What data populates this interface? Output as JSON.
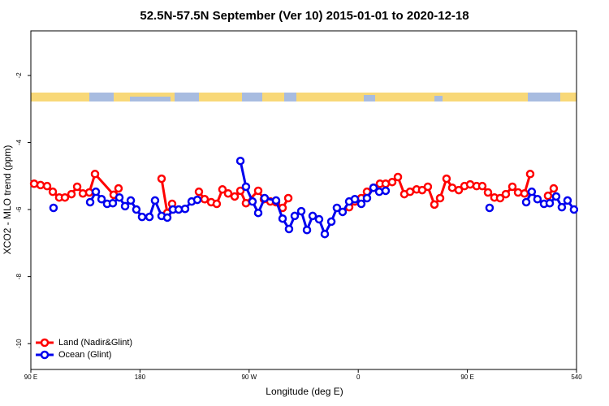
{
  "chart_data": {
    "type": "line",
    "title": "52.5N-57.5N September (Ver 10)   2015-01-01 to 2020-12-18",
    "x_label": "Longitude (deg E)",
    "y_label": "XCO2 - MLO trend (ppm)",
    "xlim": [
      90,
      540
    ],
    "xticks": [
      {
        "value": 90,
        "label": "90 E"
      },
      180,
      {
        "value": 270,
        "label": "90 W"
      },
      {
        "value": 360,
        "label": "0"
      },
      {
        "value": 450,
        "label": "90 E"
      },
      540
    ],
    "ylim": [
      -10.77,
      -0.67
    ],
    "yticks": [
      -10,
      -8,
      -6,
      -4,
      -2
    ],
    "legend": "bottomleft",
    "series": [
      {
        "name": "Land (Nadir&Glint)",
        "color": "#ff0000",
        "x": [
          92.7,
          98.0,
          103.4,
          108.1,
          113.4,
          118.1,
          123.5,
          128.2,
          132.9,
          138.2,
          142.9,
          158.3,
          162.3,
          180,
          197.8,
          202.5,
          206.5,
          218,
          228.6,
          233.3,
          238.7,
          243.3,
          248.0,
          252.7,
          258.1,
          262.8,
          267.4,
          277.5,
          282.2,
          287.5,
          292.2,
          297.6,
          302.3,
          330,
          352.5,
          357.2,
          362.5,
          367.2,
          372.6,
          377.9,
          382.6,
          388.0,
          392.7,
          398.0,
          402.7,
          408.1,
          412.7,
          417.4,
          422.8,
          427.5,
          432.8,
          437.5,
          442.9,
          447.6,
          452.3,
          457.6,
          462.3,
          467.0,
          472.3,
          477.0,
          481.7,
          487.1,
          491.8,
          497.1,
          501.8,
          510,
          516.5,
          521.2
        ],
        "values": [
          -5.23,
          -5.27,
          -5.3,
          -5.47,
          -5.64,
          -5.64,
          -5.54,
          -5.32,
          -5.52,
          -5.49,
          -4.94,
          -5.56,
          -5.37,
          null,
          -5.08,
          -6.1,
          -5.83,
          null,
          -5.47,
          -5.69,
          -5.78,
          -5.83,
          -5.4,
          -5.52,
          -5.61,
          -5.44,
          -5.81,
          -5.44,
          -5.69,
          -5.76,
          -5.78,
          -5.95,
          -5.66,
          null,
          -5.93,
          -5.76,
          -5.66,
          -5.47,
          -5.35,
          -5.23,
          -5.23,
          -5.18,
          -5.03,
          -5.54,
          -5.47,
          -5.4,
          -5.42,
          -5.32,
          -5.85,
          -5.66,
          -5.08,
          -5.35,
          -5.42,
          -5.3,
          -5.25,
          -5.3,
          -5.3,
          -5.49,
          -5.64,
          -5.66,
          -5.54,
          -5.32,
          -5.49,
          -5.52,
          -4.94,
          null,
          -5.59,
          -5.37
        ]
      },
      {
        "name": "Ocean (Glint)",
        "color": "#0000ee",
        "x": [
          108.7,
          130,
          138.9,
          143.6,
          148.3,
          152.9,
          157.6,
          163.0,
          167.7,
          172.4,
          177.0,
          181.7,
          187.8,
          192.4,
          197.8,
          202.5,
          207.2,
          211.9,
          217.2,
          222.6,
          227.3,
          245,
          262.8,
          267.4,
          272.8,
          277.5,
          282.8,
          292.2,
          297.6,
          302.9,
          307.6,
          313.0,
          317.7,
          322.4,
          327.7,
          332.4,
          337.8,
          342.4,
          347.1,
          352.5,
          357.2,
          362.5,
          367.2,
          372.6,
          377.3,
          382.6,
          420,
          468.3,
          480,
          498.5,
          503.1,
          507.8,
          513.2,
          517.9,
          523.2,
          527.9,
          532.6,
          537.9
        ],
        "values": [
          -5.95,
          null,
          -5.78,
          -5.47,
          -5.69,
          -5.83,
          -5.81,
          -5.64,
          -5.9,
          -5.73,
          -6.0,
          -6.22,
          -6.22,
          -5.73,
          -6.19,
          -6.24,
          -6.0,
          -6.0,
          -5.98,
          -5.76,
          -5.71,
          null,
          -4.55,
          -5.32,
          -5.76,
          -6.1,
          -5.66,
          -5.73,
          -6.27,
          -6.58,
          -6.19,
          -6.05,
          -6.61,
          -6.19,
          -6.29,
          -6.73,
          -6.36,
          -5.95,
          -6.07,
          -5.76,
          -5.69,
          -5.83,
          -5.66,
          -5.35,
          -5.47,
          -5.44,
          null,
          -5.95,
          null,
          -5.78,
          -5.47,
          -5.69,
          -5.83,
          -5.81,
          -5.61,
          -5.93,
          -5.73,
          -6.0
        ]
      }
    ]
  }
}
